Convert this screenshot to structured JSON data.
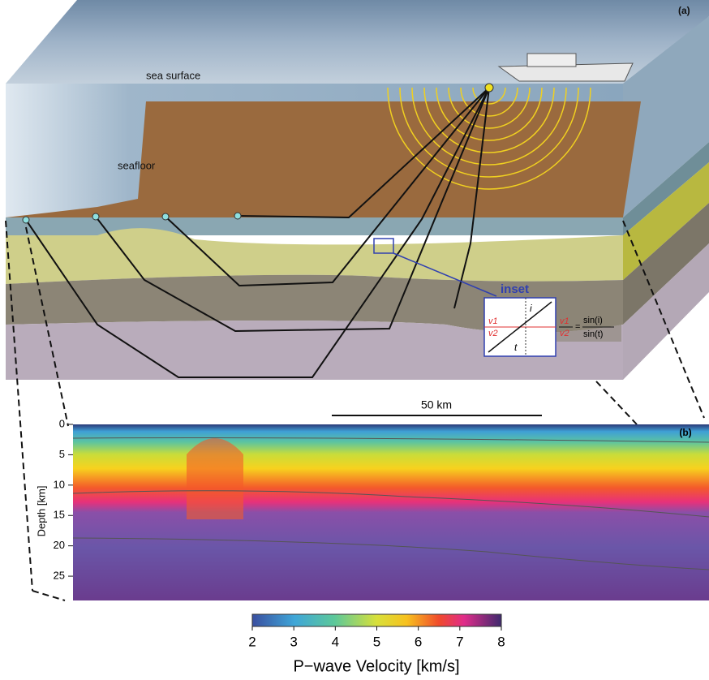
{
  "panel_a": {
    "label": "(a)",
    "sea_surface": "sea surface",
    "seafloor": "seafloor",
    "inset": {
      "title": "inset",
      "v1": "v1",
      "v2": "v2",
      "angle_i": "i",
      "angle_t": "t",
      "equals": "=",
      "sin_i": "sin(i)",
      "sin_t": "sin(t)"
    }
  },
  "panel_b": {
    "label": "(b)",
    "scale_bar": "50 km",
    "depth_axis": {
      "label": "Depth [km]",
      "lim": [
        0,
        29
      ],
      "ticks": [
        0,
        5,
        10,
        15,
        20,
        25
      ]
    }
  },
  "colorbar": {
    "label": "P−wave Velocity [km/s]",
    "lim": [
      2,
      8
    ],
    "ticks": [
      2,
      3,
      4,
      5,
      6,
      7,
      8
    ]
  }
}
